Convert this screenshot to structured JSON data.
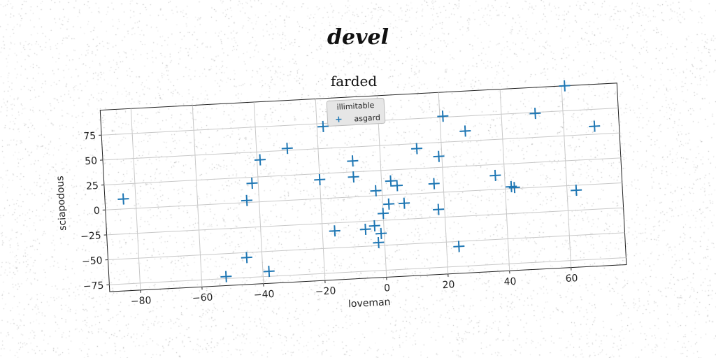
{
  "page": {
    "suptitle": "devel"
  },
  "chart_data": {
    "type": "scatter",
    "title": "farded",
    "xlabel": "loveman",
    "ylabel": "sciapodous",
    "xlim": [
      -90,
      78
    ],
    "ylim": [
      -82,
      100
    ],
    "xticks": [
      -80,
      -60,
      -40,
      -20,
      0,
      20,
      40,
      60
    ],
    "yticks": [
      -75,
      -50,
      -25,
      0,
      25,
      50,
      75
    ],
    "grid": true,
    "legend": {
      "title": "illimitable",
      "placement": "top-center"
    },
    "marker": "plus",
    "series": [
      {
        "name": "asgard",
        "color": "#1f77b4",
        "points": [
          [
            -84,
            10
          ],
          [
            -52,
            -73
          ],
          [
            -45,
            -55
          ],
          [
            -44,
            2
          ],
          [
            -42,
            19
          ],
          [
            -39,
            42
          ],
          [
            -38,
            -70
          ],
          [
            -30,
            52
          ],
          [
            -20,
            19
          ],
          [
            -18,
            72
          ],
          [
            -16,
            -33
          ],
          [
            -9,
            36
          ],
          [
            -9,
            20
          ],
          [
            -6,
            -33
          ],
          [
            -3,
            -30
          ],
          [
            -2,
            5
          ],
          [
            -2,
            -47
          ],
          [
            -1,
            -38
          ],
          [
            0,
            -18
          ],
          [
            2,
            -9
          ],
          [
            3,
            14
          ],
          [
            5,
            9
          ],
          [
            7,
            -9
          ],
          [
            12,
            45
          ],
          [
            17,
            9
          ],
          [
            18,
            -17
          ],
          [
            19,
            36
          ],
          [
            21,
            76
          ],
          [
            24,
            -55
          ],
          [
            28,
            60
          ],
          [
            37,
            14
          ],
          [
            42,
            2
          ],
          [
            43,
            1
          ],
          [
            51,
            74
          ],
          [
            61,
            100
          ],
          [
            63,
            -5
          ],
          [
            70,
            58
          ]
        ]
      }
    ]
  }
}
